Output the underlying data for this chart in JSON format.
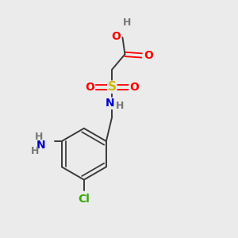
{
  "background_color": "#ebebeb",
  "bond_color": "#3a3a3a",
  "atom_colors": {
    "O": "#ff0000",
    "S": "#ccbb00",
    "N": "#0000cc",
    "Cl": "#33aa00",
    "H": "#777777",
    "C": "#3a3a3a"
  },
  "figsize": [
    3.0,
    3.0
  ],
  "dpi": 100
}
